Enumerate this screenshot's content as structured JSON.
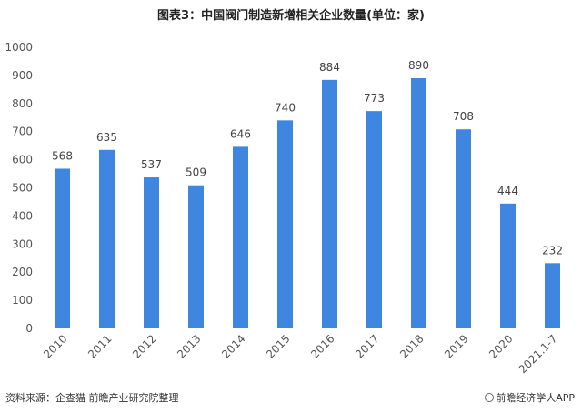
{
  "chart_data": {
    "type": "bar",
    "title": "图表3：中国阀门制造新增相关企业数量(单位：家)",
    "categories": [
      "2010",
      "2011",
      "2012",
      "2013",
      "2014",
      "2015",
      "2016",
      "2017",
      "2018",
      "2019",
      "2020",
      "2021.1-7"
    ],
    "values": [
      568,
      635,
      537,
      509,
      646,
      740,
      884,
      773,
      890,
      708,
      444,
      232
    ],
    "ylim": [
      0,
      1000
    ],
    "yticks": [
      0,
      100,
      200,
      300,
      400,
      500,
      600,
      700,
      800,
      900,
      1000
    ],
    "bar_color": "#3f86e0",
    "grid": false,
    "legend": "none"
  },
  "footer": {
    "source": "资料来源：企查猫 前瞻产业研究院整理",
    "brand": "前瞻经济学人APP",
    "brand_icon": "brand-logo-icon"
  }
}
